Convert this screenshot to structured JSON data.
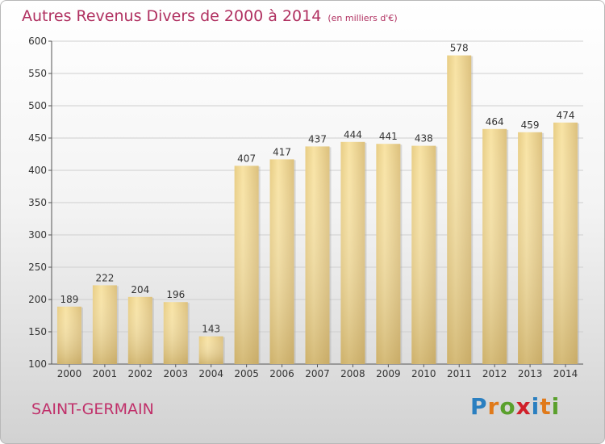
{
  "title": "Autres Revenus Divers de 2000 à 2014",
  "subtitle": "(en milliers d'€)",
  "location": "SAINT-GERMAIN",
  "logo": {
    "text": "Proxiti",
    "letters": [
      {
        "ch": "P",
        "color": "#2a7fc0"
      },
      {
        "ch": "r",
        "color": "#e07a1a"
      },
      {
        "ch": "o",
        "color": "#5aa02c"
      },
      {
        "ch": "x",
        "color": "#d0202a"
      },
      {
        "ch": "i",
        "color": "#2a7fc0"
      },
      {
        "ch": "t",
        "color": "#e07a1a"
      },
      {
        "ch": "i",
        "color": "#5aa02c"
      }
    ]
  },
  "chart_data": {
    "type": "bar",
    "categories": [
      "2000",
      "2001",
      "2002",
      "2003",
      "2004",
      "2005",
      "2006",
      "2007",
      "2008",
      "2009",
      "2010",
      "2011",
      "2012",
      "2013",
      "2014"
    ],
    "values": [
      189,
      222,
      204,
      196,
      143,
      407,
      417,
      437,
      444,
      441,
      438,
      578,
      464,
      459,
      474
    ],
    "ylim": [
      100,
      600
    ],
    "yticks": [
      100,
      150,
      200,
      250,
      300,
      350,
      400,
      450,
      500,
      550,
      600
    ],
    "grid": true,
    "colors": {
      "bar_light": "#f6df9c",
      "bar_dark": "#c9ad6a",
      "grid": "#cfcfcf",
      "text": "#333333"
    }
  }
}
